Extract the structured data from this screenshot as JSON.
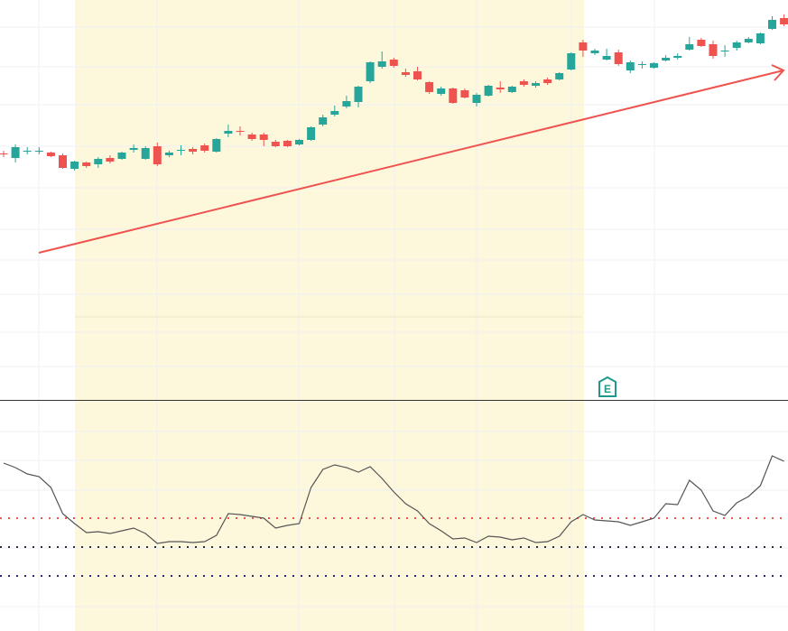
{
  "chart_data": [
    {
      "type": "candlestick",
      "ylim": [
        0,
        443
      ],
      "up_color": "#26a69a",
      "down_color": "#ef5350",
      "open": [
        273,
        268,
        276,
        276,
        274,
        271,
        256,
        263,
        261,
        268,
        267,
        277,
        267,
        281,
        271,
        276,
        278,
        282,
        275,
        295,
        298,
        294,
        294,
        286,
        287,
        283,
        288,
        305,
        316,
        325,
        330,
        353,
        369,
        377,
        363,
        364,
        352,
        339,
        345,
        343,
        329,
        337,
        346,
        341,
        353,
        348,
        355,
        355,
        366,
        396,
        384,
        377,
        385,
        365,
        371,
        368,
        376,
        379,
        388,
        399,
        394,
        386,
        390,
        396,
        395,
        411,
        423
      ],
      "high": [
        276,
        283,
        280,
        280,
        275,
        273,
        265,
        264,
        269,
        271,
        275,
        283,
        281,
        285,
        276,
        282,
        280,
        284,
        290,
        305,
        303,
        296,
        296,
        288,
        288,
        289,
        303,
        316,
        326,
        337,
        348,
        375,
        386,
        379,
        367,
        369,
        353,
        347,
        346,
        345,
        340,
        349,
        353,
        348,
        355,
        353,
        357,
        363,
        385,
        399,
        389,
        389,
        388,
        376,
        375,
        374,
        382,
        384,
        402,
        401,
        398,
        393,
        398,
        402,
        407,
        425,
        427
      ],
      "low": [
        269,
        263,
        272,
        272,
        269,
        256,
        254,
        257,
        257,
        262,
        266,
        274,
        266,
        259,
        269,
        271,
        272,
        274,
        274,
        291,
        293,
        287,
        281,
        280,
        280,
        282,
        287,
        303,
        314,
        323,
        324,
        351,
        367,
        368,
        358,
        354,
        339,
        337,
        328,
        334,
        325,
        336,
        340,
        340,
        347,
        346,
        349,
        354,
        365,
        380,
        382,
        376,
        370,
        362,
        367,
        367,
        375,
        377,
        387,
        391,
        378,
        380,
        387,
        395,
        394,
        410,
        414
      ],
      "close": [
        272,
        280,
        276,
        276,
        270,
        257,
        264,
        259,
        267,
        264,
        274,
        279,
        279,
        261,
        274,
        277,
        275,
        276,
        289,
        298,
        297,
        289,
        288,
        281,
        281,
        288,
        302,
        313,
        320,
        331,
        347,
        374,
        375,
        370,
        360,
        355,
        341,
        345,
        329,
        335,
        338,
        348,
        344,
        347,
        349,
        351,
        351,
        362,
        384,
        387,
        387,
        381,
        372,
        374,
        372,
        373,
        379,
        381,
        394,
        392,
        381,
        387,
        396,
        400,
        406,
        421,
        416
      ],
      "earnings_marker": "E"
    },
    {
      "type": "line",
      "ylim": [
        0,
        255
      ],
      "color": "#555555",
      "values": [
        186,
        181,
        174,
        171,
        159,
        130,
        119,
        109,
        110,
        108,
        111,
        114,
        108,
        97,
        99,
        99,
        98,
        99,
        106,
        130,
        129,
        127,
        125,
        114,
        117,
        119,
        159,
        179,
        184,
        181,
        176,
        182,
        169,
        154,
        141,
        133,
        119,
        111,
        102,
        103,
        98,
        105,
        104,
        101,
        103,
        98,
        99,
        105,
        121,
        129,
        123,
        122,
        121,
        117,
        121,
        125,
        141,
        140,
        167,
        156,
        133,
        128,
        142,
        149,
        161,
        194,
        188
      ],
      "levels": [
        {
          "value": 125,
          "color": "#ef5350"
        },
        {
          "value": 93,
          "color": "#2a2e39"
        },
        {
          "value": 61,
          "color": "#2e2a7a"
        }
      ]
    }
  ]
}
